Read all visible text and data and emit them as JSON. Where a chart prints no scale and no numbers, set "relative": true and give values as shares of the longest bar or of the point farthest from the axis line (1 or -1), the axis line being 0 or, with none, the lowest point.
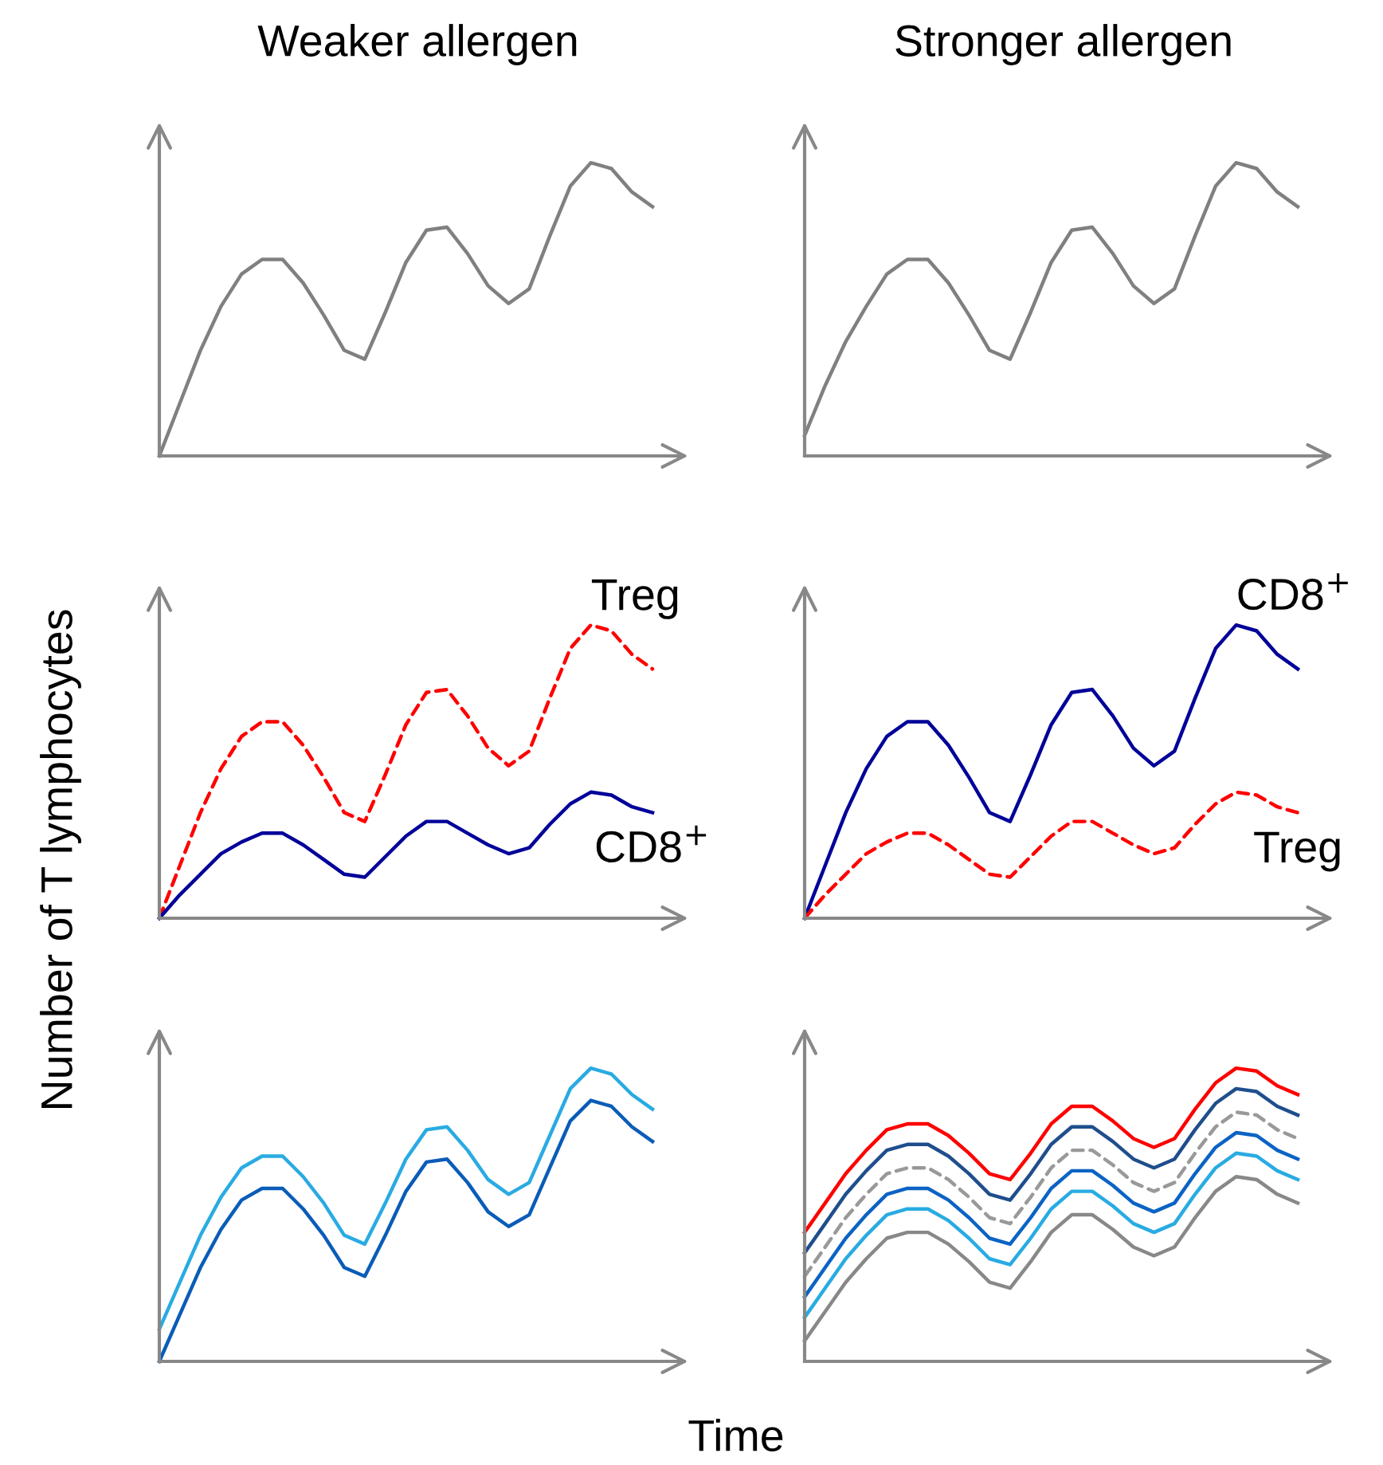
{
  "chart_data": [
    {
      "type": "line",
      "title": "Weaker allergen",
      "relative": true,
      "categories": [
        null,
        null,
        null,
        null,
        null,
        null,
        null,
        null,
        null,
        null,
        null,
        null,
        null,
        null,
        null,
        null,
        null,
        null,
        null,
        null,
        null,
        null,
        null,
        null,
        null
      ],
      "series": [
        {
          "color": "#808080",
          "values": [
            0,
            0.18,
            0.36,
            0.51,
            0.62,
            0.67,
            0.67,
            0.59,
            0.48,
            0.36,
            0.33,
            0.49,
            0.66,
            0.77,
            0.78,
            0.69,
            0.58,
            0.52,
            0.57,
            0.75,
            0.92,
            1,
            0.98,
            0.9,
            0.85
          ]
        }
      ]
    },
    {
      "type": "line",
      "title": "Stronger allergen",
      "relative": true,
      "categories": [
        null,
        null,
        null,
        null,
        null,
        null,
        null,
        null,
        null,
        null,
        null,
        null,
        null,
        null,
        null,
        null,
        null,
        null,
        null,
        null,
        null,
        null,
        null,
        null,
        null
      ],
      "series": [
        {
          "color": "#808080",
          "values": [
            0.07,
            0.24,
            0.39,
            0.51,
            0.62,
            0.67,
            0.67,
            0.59,
            0.48,
            0.36,
            0.33,
            0.49,
            0.66,
            0.77,
            0.78,
            0.69,
            0.58,
            0.52,
            0.57,
            0.75,
            0.92,
            1,
            0.98,
            0.9,
            0.85
          ]
        }
      ]
    },
    {
      "type": "line",
      "relative": true,
      "ylabel": "Number of T lymphocytes",
      "categories": [
        null,
        null,
        null,
        null,
        null,
        null,
        null,
        null,
        null,
        null,
        null,
        null,
        null,
        null,
        null,
        null,
        null,
        null,
        null,
        null,
        null,
        null,
        null,
        null,
        null
      ],
      "series": [
        {
          "name": "Treg",
          "color": "#ff0000",
          "line_style": "dashed",
          "values": [
            0,
            0.18,
            0.36,
            0.51,
            0.62,
            0.67,
            0.67,
            0.59,
            0.48,
            0.36,
            0.33,
            0.49,
            0.66,
            0.77,
            0.78,
            0.69,
            0.58,
            0.52,
            0.57,
            0.75,
            0.92,
            1,
            0.98,
            0.9,
            0.85
          ]
        },
        {
          "name": "CD8$^{+}$",
          "color": "#000099",
          "values": [
            0,
            0.08,
            0.15,
            0.22,
            0.26,
            0.29,
            0.29,
            0.25,
            0.2,
            0.15,
            0.14,
            0.21,
            0.28,
            0.33,
            0.33,
            0.29,
            0.25,
            0.22,
            0.24,
            0.32,
            0.39,
            0.43,
            0.42,
            0.38,
            0.36
          ]
        }
      ]
    },
    {
      "type": "line",
      "relative": true,
      "categories": [
        null,
        null,
        null,
        null,
        null,
        null,
        null,
        null,
        null,
        null,
        null,
        null,
        null,
        null,
        null,
        null,
        null,
        null,
        null,
        null,
        null,
        null,
        null,
        null,
        null
      ],
      "series": [
        {
          "name": "CD8$^{+}$",
          "color": "#000099",
          "values": [
            0,
            0.18,
            0.36,
            0.51,
            0.62,
            0.67,
            0.67,
            0.59,
            0.48,
            0.36,
            0.33,
            0.49,
            0.66,
            0.77,
            0.78,
            0.69,
            0.58,
            0.52,
            0.57,
            0.75,
            0.92,
            1,
            0.98,
            0.9,
            0.85
          ]
        },
        {
          "name": "Treg",
          "color": "#ff0000",
          "line_style": "dashed",
          "values": [
            0,
            0.08,
            0.15,
            0.22,
            0.26,
            0.29,
            0.29,
            0.25,
            0.2,
            0.15,
            0.14,
            0.21,
            0.28,
            0.33,
            0.33,
            0.29,
            0.25,
            0.22,
            0.24,
            0.32,
            0.39,
            0.43,
            0.42,
            0.38,
            0.36
          ]
        }
      ]
    },
    {
      "type": "line",
      "relative": true,
      "xlabel": "Time",
      "categories": [
        null,
        null,
        null,
        null,
        null,
        null,
        null,
        null,
        null,
        null,
        null,
        null,
        null,
        null,
        null,
        null,
        null,
        null,
        null,
        null,
        null,
        null,
        null,
        null,
        null
      ],
      "series": [
        {
          "color": "#29abe2",
          "values": [
            0.11,
            0.27,
            0.43,
            0.56,
            0.66,
            0.7,
            0.7,
            0.63,
            0.54,
            0.43,
            0.4,
            0.54,
            0.69,
            0.79,
            0.8,
            0.72,
            0.62,
            0.57,
            0.61,
            0.77,
            0.93,
            1,
            0.98,
            0.91,
            0.86
          ]
        },
        {
          "color": "#0a5cb8",
          "values": [
            0,
            0.16,
            0.32,
            0.45,
            0.55,
            0.59,
            0.59,
            0.52,
            0.43,
            0.32,
            0.29,
            0.43,
            0.58,
            0.68,
            0.69,
            0.61,
            0.51,
            0.46,
            0.5,
            0.66,
            0.82,
            0.89,
            0.87,
            0.8,
            0.75
          ]
        }
      ]
    },
    {
      "type": "line",
      "relative": true,
      "categories": [
        null,
        null,
        null,
        null,
        null,
        null,
        null,
        null,
        null,
        null,
        null,
        null,
        null,
        null,
        null,
        null,
        null,
        null,
        null,
        null,
        null,
        null,
        null,
        null,
        null
      ],
      "series": [
        {
          "color": "#ff0000",
          "values": [
            0.44,
            0.54,
            0.64,
            0.72,
            0.79,
            0.81,
            0.81,
            0.77,
            0.71,
            0.64,
            0.62,
            0.71,
            0.81,
            0.87,
            0.87,
            0.82,
            0.76,
            0.73,
            0.76,
            0.86,
            0.95,
            1,
            0.99,
            0.94,
            0.91
          ]
        },
        {
          "color": "#1f4e8c",
          "values": [
            0.37,
            0.47,
            0.57,
            0.65,
            0.72,
            0.74,
            0.74,
            0.7,
            0.64,
            0.57,
            0.55,
            0.64,
            0.74,
            0.8,
            0.8,
            0.75,
            0.69,
            0.66,
            0.69,
            0.79,
            0.88,
            0.93,
            0.92,
            0.87,
            0.84
          ]
        },
        {
          "color": "#999999",
          "line_style": "dashed",
          "values": [
            0.29,
            0.39,
            0.49,
            0.57,
            0.64,
            0.66,
            0.66,
            0.62,
            0.56,
            0.49,
            0.47,
            0.56,
            0.66,
            0.72,
            0.72,
            0.67,
            0.61,
            0.58,
            0.61,
            0.71,
            0.8,
            0.85,
            0.84,
            0.79,
            0.76
          ]
        },
        {
          "color": "#0b63c4",
          "values": [
            0.22,
            0.32,
            0.42,
            0.5,
            0.57,
            0.59,
            0.59,
            0.55,
            0.49,
            0.42,
            0.4,
            0.49,
            0.59,
            0.65,
            0.65,
            0.6,
            0.54,
            0.51,
            0.54,
            0.64,
            0.73,
            0.78,
            0.77,
            0.72,
            0.69
          ]
        },
        {
          "color": "#29abe2",
          "values": [
            0.15,
            0.25,
            0.35,
            0.43,
            0.5,
            0.52,
            0.52,
            0.48,
            0.42,
            0.35,
            0.33,
            0.42,
            0.52,
            0.58,
            0.58,
            0.53,
            0.47,
            0.44,
            0.47,
            0.57,
            0.66,
            0.71,
            0.7,
            0.65,
            0.62
          ]
        },
        {
          "color": "#888888",
          "values": [
            0.07,
            0.17,
            0.27,
            0.35,
            0.42,
            0.44,
            0.44,
            0.4,
            0.34,
            0.27,
            0.25,
            0.34,
            0.44,
            0.5,
            0.5,
            0.45,
            0.39,
            0.36,
            0.39,
            0.49,
            0.58,
            0.63,
            0.62,
            0.57,
            0.54
          ]
        }
      ]
    }
  ]
}
